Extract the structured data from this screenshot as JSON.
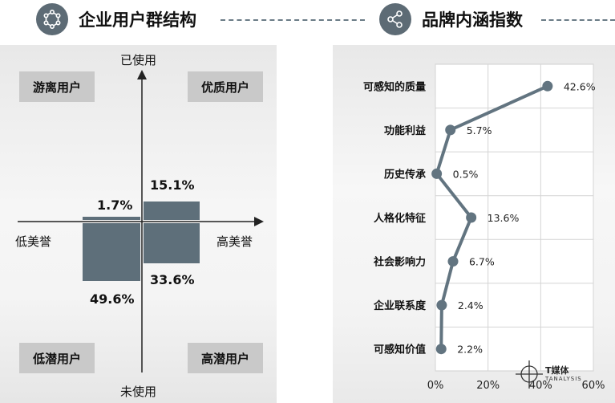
{
  "header": {
    "left_title": "企业用户群结构",
    "right_title": "品牌内涵指数",
    "left_icon": "network-icon",
    "right_icon": "share-icon"
  },
  "colors": {
    "bar": "#5e6f7a",
    "quadrant_box": "#c9c9c9",
    "icon_bg": "#5d6b75",
    "line": "#627480"
  },
  "chart_data": [
    {
      "type": "quadrant",
      "axes": {
        "top": "已使用",
        "bottom": "未使用",
        "left": "低美誉",
        "right": "高美誉"
      },
      "quadrant_labels": {
        "top_left": "游离用户",
        "top_right": "优质用户",
        "bottom_left": "低潜用户",
        "bottom_right": "高潜用户"
      },
      "values": {
        "top_left": "1.7%",
        "top_right": "15.1%",
        "bottom_left": "49.6%",
        "bottom_right": "33.6%"
      },
      "numeric": {
        "top_left": 1.7,
        "top_right": 15.1,
        "bottom_left": 49.6,
        "bottom_right": 33.6
      }
    },
    {
      "type": "line",
      "categories": [
        "可感知的质量",
        "功能利益",
        "历史传承",
        "人格化特征",
        "社会影响力",
        "企业联系度",
        "可感知价值"
      ],
      "values": [
        42.6,
        5.7,
        0.5,
        13.6,
        6.7,
        2.4,
        2.2
      ],
      "value_labels": [
        "42.6%",
        "5.7%",
        "0.5%",
        "13.6%",
        "6.7%",
        "2.4%",
        "2.2%"
      ],
      "xlim": [
        0,
        60
      ],
      "x_ticks": [
        "0%",
        "20%",
        "40%",
        "60%"
      ],
      "x_tick_values": [
        0,
        20,
        40,
        60
      ],
      "grid": true,
      "orientation": "horizontal"
    }
  ],
  "watermark": {
    "brand": "T媒体",
    "sub": "TANALYSIS"
  }
}
